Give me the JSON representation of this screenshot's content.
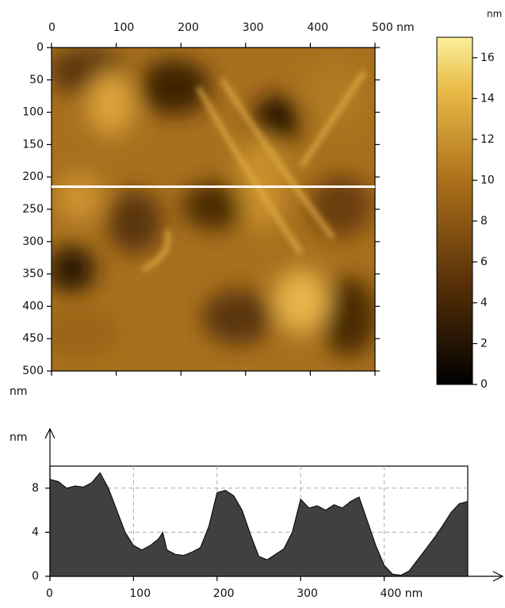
{
  "chart_data": [
    {
      "type": "image",
      "xlim": [
        0,
        500
      ],
      "xticks": [
        0,
        100,
        200,
        300,
        400,
        {
          "value": 500,
          "label": "500 nm"
        }
      ],
      "ylim": [
        0,
        500
      ],
      "yticks": [
        0,
        50,
        100,
        150,
        200,
        250,
        300,
        350,
        400,
        450,
        500
      ],
      "ylabel": "nm",
      "profile_line": 215
    },
    {
      "type": "colorbar",
      "title": "nm",
      "ylim": [
        0,
        17
      ],
      "yticks": [
        0,
        2,
        4,
        6,
        8,
        10,
        12,
        14,
        16
      ]
    },
    {
      "type": "area",
      "ylabel": "nm",
      "color": "#404040",
      "xlim": [
        0,
        500
      ],
      "xticks": [
        0,
        100,
        200,
        300,
        {
          "value": 400,
          "label": "400 nm"
        }
      ],
      "ylim": [
        0,
        10
      ],
      "yticks": [
        0,
        4,
        8
      ],
      "grid": true,
      "x": [
        0,
        10,
        20,
        30,
        40,
        50,
        60,
        70,
        80,
        90,
        100,
        110,
        120,
        130,
        135,
        140,
        150,
        160,
        170,
        180,
        190,
        200,
        210,
        220,
        230,
        240,
        250,
        260,
        270,
        280,
        290,
        300,
        310,
        320,
        330,
        340,
        350,
        360,
        370,
        380,
        390,
        400,
        410,
        420,
        430,
        440,
        450,
        460,
        470,
        480,
        490,
        500
      ],
      "values": [
        8.8,
        8.6,
        8.0,
        8.2,
        8.1,
        8.5,
        9.4,
        8.0,
        6.0,
        4.0,
        2.8,
        2.4,
        2.8,
        3.4,
        4.0,
        2.4,
        2.0,
        1.9,
        2.2,
        2.6,
        4.5,
        7.6,
        7.8,
        7.3,
        6.0,
        3.8,
        1.8,
        1.5,
        2.0,
        2.5,
        4.0,
        7.0,
        6.2,
        6.4,
        6.0,
        6.5,
        6.2,
        6.8,
        7.2,
        5.0,
        2.8,
        1.0,
        0.2,
        0.1,
        0.5,
        1.5,
        2.5,
        3.5,
        4.6,
        5.8,
        6.6,
        6.8
      ]
    }
  ]
}
